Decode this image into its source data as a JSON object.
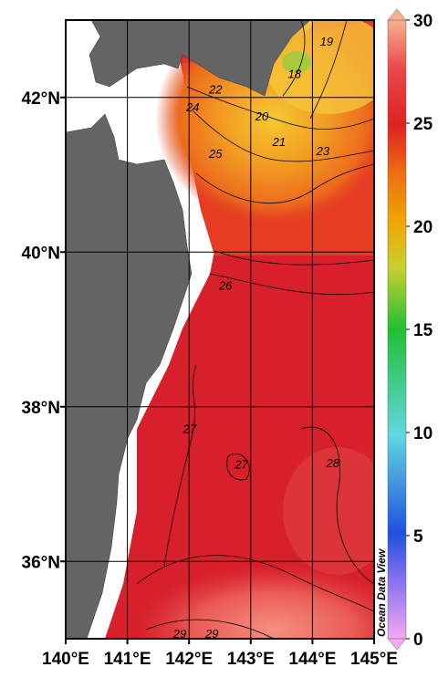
{
  "map": {
    "xlim": [
      140,
      145
    ],
    "ylim": [
      35,
      43
    ],
    "xticks": [
      {
        "value": 140,
        "label": "140°E"
      },
      {
        "value": 141,
        "label": "141°E"
      },
      {
        "value": 142,
        "label": "142°E"
      },
      {
        "value": 143,
        "label": "143°E"
      },
      {
        "value": 144,
        "label": "144°E"
      },
      {
        "value": 145,
        "label": "145°E"
      }
    ],
    "yticks": [
      {
        "value": 36,
        "label": "36°N"
      },
      {
        "value": 38,
        "label": "38°N"
      },
      {
        "value": 40,
        "label": "40°N"
      },
      {
        "value": 42,
        "label": "42°N"
      }
    ],
    "colorbar": {
      "lim": [
        0,
        30
      ],
      "ticks": [
        0,
        5,
        10,
        15,
        20,
        25,
        30
      ]
    },
    "contour_labels": [
      {
        "value": 19,
        "lon": 144.23,
        "lat": 42.73
      },
      {
        "value": 18,
        "lon": 143.71,
        "lat": 42.31
      },
      {
        "value": 22,
        "lon": 142.43,
        "lat": 42.11
      },
      {
        "value": 24,
        "lon": 142.06,
        "lat": 41.88
      },
      {
        "value": 20,
        "lon": 143.18,
        "lat": 41.76
      },
      {
        "value": 21,
        "lon": 143.46,
        "lat": 41.43
      },
      {
        "value": 23,
        "lon": 144.17,
        "lat": 41.31
      },
      {
        "value": 25,
        "lon": 142.43,
        "lat": 41.28
      },
      {
        "value": 26,
        "lon": 142.59,
        "lat": 39.57
      },
      {
        "value": 27,
        "lon": 142.01,
        "lat": 37.72
      },
      {
        "value": 27,
        "lon": 142.85,
        "lat": 37.26
      },
      {
        "value": 28,
        "lon": 144.33,
        "lat": 37.28
      },
      {
        "value": 29,
        "lon": 141.85,
        "lat": 35.07
      },
      {
        "value": 29,
        "lon": 142.37,
        "lat": 35.07
      }
    ],
    "watermark": "Ocean Data View"
  }
}
